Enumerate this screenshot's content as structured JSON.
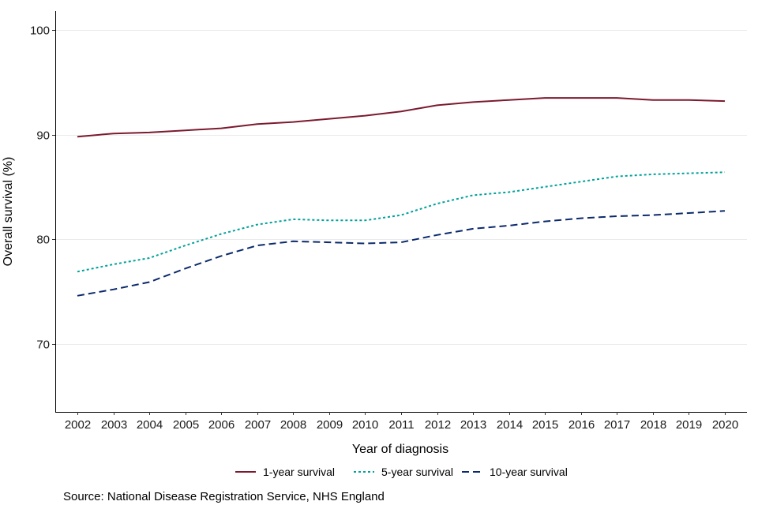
{
  "chart_data": {
    "type": "line",
    "title": "",
    "xlabel": "Year of diagnosis",
    "ylabel": "Overall survival (%)",
    "ylim": [
      63.5,
      101.8
    ],
    "yticks": [
      70,
      80,
      90,
      100
    ],
    "x": [
      2002,
      2003,
      2004,
      2005,
      2006,
      2007,
      2008,
      2009,
      2010,
      2011,
      2012,
      2013,
      2014,
      2015,
      2016,
      2017,
      2018,
      2019,
      2020
    ],
    "grid": "horizontal major lines",
    "legend_position": "bottom",
    "series": [
      {
        "name": "1-year survival",
        "color": "#7b1a2e",
        "style": "solid",
        "values": [
          89.8,
          90.1,
          90.2,
          90.4,
          90.6,
          91.0,
          91.2,
          91.5,
          91.8,
          92.2,
          92.8,
          93.1,
          93.3,
          93.5,
          93.5,
          93.5,
          93.3,
          93.3,
          93.2
        ]
      },
      {
        "name": "5-year survival",
        "color": "#00a19a",
        "style": "dotted",
        "values": [
          76.9,
          77.6,
          78.2,
          79.4,
          80.5,
          81.4,
          81.9,
          81.8,
          81.8,
          82.3,
          83.4,
          84.2,
          84.5,
          85.0,
          85.5,
          86.0,
          86.2,
          86.3,
          86.4
        ]
      },
      {
        "name": "10-year survival",
        "color": "#0b2a6b",
        "style": "dashed",
        "values": [
          74.6,
          75.2,
          75.9,
          77.2,
          78.4,
          79.4,
          79.8,
          79.7,
          79.6,
          79.7,
          80.4,
          81.0,
          81.3,
          81.7,
          82.0,
          82.2,
          82.3,
          82.5,
          82.7
        ]
      }
    ]
  },
  "source": "Source: National Disease Registration Service, NHS England"
}
